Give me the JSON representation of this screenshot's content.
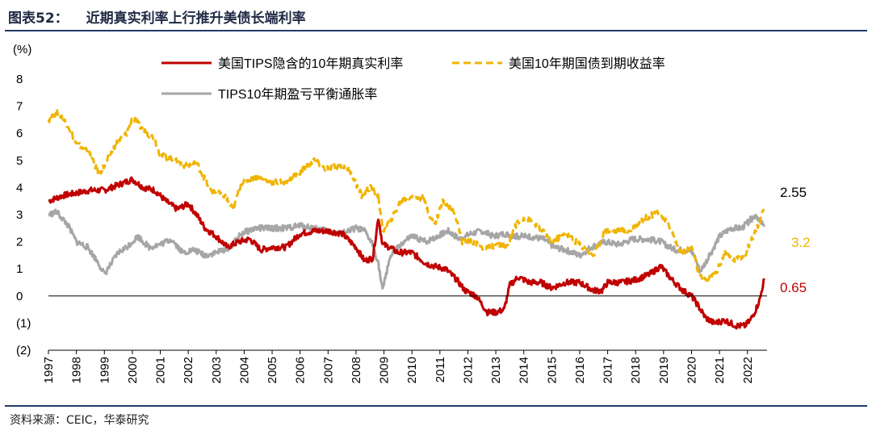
{
  "header": {
    "figure_label": "图表52：",
    "title": "近期真实利率上行推升美债长端利率"
  },
  "footer": {
    "source": "资料来源：CEIC，华泰研究"
  },
  "chart_data": {
    "type": "line",
    "ylabel": "(%)",
    "ylim": [
      -2,
      8
    ],
    "yticks": [
      {
        "value": 8,
        "label": "8"
      },
      {
        "value": 7,
        "label": "7"
      },
      {
        "value": 6,
        "label": "6"
      },
      {
        "value": 5,
        "label": "5"
      },
      {
        "value": 4,
        "label": "4"
      },
      {
        "value": 3,
        "label": "3"
      },
      {
        "value": 2,
        "label": "2"
      },
      {
        "value": 1,
        "label": "1"
      },
      {
        "value": 0,
        "label": "0"
      },
      {
        "value": -1,
        "label": "(1)"
      },
      {
        "value": -2,
        "label": "(2)"
      }
    ],
    "xlim": [
      1997,
      2022.7
    ],
    "xticks": [
      "1997",
      "1998",
      "1999",
      "2000",
      "2001",
      "2002",
      "2003",
      "2004",
      "2005",
      "2006",
      "2007",
      "2008",
      "2009",
      "2010",
      "2011",
      "2012",
      "2013",
      "2014",
      "2015",
      "2016",
      "2017",
      "2018",
      "2019",
      "2020",
      "2021",
      "2022"
    ],
    "series": [
      {
        "name": "美国TIPS隐含的10年期真实利率",
        "color": "#c00000",
        "dash": false,
        "end_label": "0.65",
        "x": [
          1997.0,
          1997.5,
          1998.0,
          1998.5,
          1999.0,
          1999.5,
          2000.0,
          2000.4,
          2000.8,
          2001.2,
          2001.6,
          2002.0,
          2002.3,
          2002.6,
          2003.0,
          2003.4,
          2003.8,
          2004.2,
          2004.6,
          2005.0,
          2005.5,
          2006.0,
          2006.5,
          2007.0,
          2007.5,
          2008.0,
          2008.3,
          2008.6,
          2008.8,
          2008.95,
          2009.2,
          2009.5,
          2010.0,
          2010.5,
          2010.8,
          2011.2,
          2011.6,
          2011.9,
          2012.3,
          2012.7,
          2013.0,
          2013.3,
          2013.5,
          2013.8,
          2014.2,
          2014.6,
          2015.0,
          2015.5,
          2016.0,
          2016.5,
          2016.8,
          2017.0,
          2017.5,
          2018.0,
          2018.5,
          2018.9,
          2019.3,
          2019.7,
          2020.0,
          2020.2,
          2020.5,
          2020.8,
          2021.2,
          2021.6,
          2021.9,
          2022.1,
          2022.3,
          2022.45,
          2022.6
        ],
        "y": [
          3.5,
          3.7,
          3.8,
          3.9,
          3.9,
          4.1,
          4.3,
          4.0,
          3.9,
          3.5,
          3.2,
          3.4,
          3.0,
          2.5,
          2.2,
          1.8,
          2.0,
          2.1,
          1.7,
          1.8,
          1.8,
          2.3,
          2.4,
          2.4,
          2.3,
          1.8,
          1.3,
          1.4,
          2.9,
          1.9,
          1.8,
          1.6,
          1.6,
          1.2,
          1.1,
          1.0,
          0.6,
          0.2,
          0.0,
          -0.6,
          -0.6,
          -0.5,
          0.4,
          0.7,
          0.5,
          0.5,
          0.3,
          0.5,
          0.5,
          0.2,
          0.2,
          0.5,
          0.5,
          0.6,
          0.8,
          1.1,
          0.6,
          0.2,
          0.0,
          -0.3,
          -0.8,
          -1.0,
          -0.9,
          -1.1,
          -1.1,
          -0.9,
          -0.5,
          -0.1,
          0.65
        ]
      },
      {
        "name": "美国10年期国债到期收益率",
        "color": "#f0b400",
        "dash": true,
        "end_label": "3.2",
        "x": [
          1997.0,
          1997.3,
          1997.7,
          1998.0,
          1998.4,
          1998.8,
          1999.0,
          1999.4,
          1999.8,
          2000.0,
          2000.4,
          2000.8,
          2001.0,
          2001.5,
          2001.9,
          2002.3,
          2002.8,
          2003.3,
          2003.6,
          2003.9,
          2004.4,
          2004.9,
          2005.4,
          2005.9,
          2006.5,
          2006.9,
          2007.4,
          2007.8,
          2008.2,
          2008.5,
          2008.8,
          2008.95,
          2009.3,
          2009.6,
          2010.0,
          2010.4,
          2010.8,
          2011.1,
          2011.5,
          2011.8,
          2012.2,
          2012.6,
          2013.0,
          2013.4,
          2013.7,
          2014.0,
          2014.5,
          2015.0,
          2015.5,
          2016.0,
          2016.5,
          2016.9,
          2017.3,
          2017.8,
          2018.2,
          2018.8,
          2019.2,
          2019.6,
          2020.0,
          2020.3,
          2020.6,
          2020.9,
          2021.2,
          2021.5,
          2021.9,
          2022.2,
          2022.5,
          2022.6
        ],
        "y": [
          6.5,
          6.8,
          6.3,
          5.6,
          5.4,
          4.5,
          4.8,
          5.6,
          6.0,
          6.6,
          6.1,
          5.8,
          5.2,
          5.0,
          4.8,
          4.9,
          3.9,
          3.7,
          3.2,
          4.2,
          4.4,
          4.2,
          4.2,
          4.5,
          5.0,
          4.7,
          4.8,
          4.6,
          3.7,
          4.0,
          3.7,
          2.4,
          2.9,
          3.5,
          3.7,
          3.6,
          2.6,
          3.5,
          3.2,
          2.0,
          2.0,
          1.7,
          1.9,
          1.8,
          2.6,
          2.9,
          2.6,
          2.0,
          2.3,
          1.9,
          1.5,
          2.4,
          2.4,
          2.4,
          2.8,
          3.1,
          2.6,
          1.6,
          1.8,
          0.7,
          0.6,
          0.9,
          1.6,
          1.3,
          1.5,
          2.2,
          2.9,
          3.2
        ]
      },
      {
        "name": "TIPS10年期盈亏平衡通胀率",
        "color": "#a6a6a6",
        "dash": false,
        "end_label": "2.55",
        "x": [
          1997.0,
          1997.3,
          1997.7,
          1998.0,
          1998.4,
          1998.8,
          1999.0,
          1999.5,
          1999.8,
          2000.2,
          2000.6,
          2001.0,
          2001.4,
          2001.8,
          2002.2,
          2002.6,
          2003.0,
          2003.5,
          2003.9,
          2004.4,
          2004.9,
          2005.5,
          2006.0,
          2006.5,
          2007.0,
          2007.5,
          2008.0,
          2008.3,
          2008.6,
          2008.8,
          2008.95,
          2009.2,
          2009.6,
          2010.0,
          2010.5,
          2010.9,
          2011.3,
          2011.7,
          2012.1,
          2012.5,
          2012.9,
          2013.3,
          2013.7,
          2014.2,
          2014.7,
          2015.1,
          2015.5,
          2016.0,
          2016.4,
          2016.9,
          2017.4,
          2017.9,
          2018.4,
          2018.9,
          2019.4,
          2019.9,
          2020.1,
          2020.3,
          2020.6,
          2021.0,
          2021.4,
          2021.8,
          2022.1,
          2022.3,
          2022.6
        ],
        "y": [
          3.0,
          3.1,
          2.6,
          2.0,
          1.8,
          1.2,
          0.8,
          1.6,
          1.8,
          2.2,
          1.8,
          1.9,
          2.1,
          1.6,
          1.7,
          1.5,
          1.6,
          1.8,
          2.3,
          2.5,
          2.5,
          2.5,
          2.6,
          2.5,
          2.4,
          2.3,
          2.5,
          2.4,
          1.9,
          1.2,
          0.2,
          1.4,
          1.9,
          2.2,
          2.0,
          2.2,
          2.4,
          2.1,
          2.3,
          2.4,
          2.2,
          2.3,
          2.2,
          2.2,
          2.1,
          1.8,
          1.7,
          1.5,
          1.8,
          2.0,
          1.9,
          2.1,
          2.1,
          2.0,
          1.7,
          1.7,
          1.5,
          0.9,
          1.4,
          2.2,
          2.5,
          2.5,
          2.8,
          3.0,
          2.55
        ]
      }
    ]
  }
}
